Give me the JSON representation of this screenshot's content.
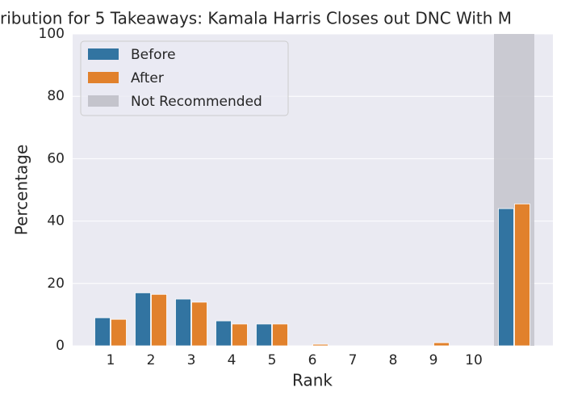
{
  "chart_data": {
    "type": "bar",
    "title": "ribution for 5 Takeaways: Kamala Harris Closes out DNC With M",
    "x_label": "Rank",
    "y_label": "Percentage",
    "categories": [
      "1",
      "2",
      "3",
      "4",
      "5",
      "6",
      "7",
      "8",
      "9",
      "10",
      null
    ],
    "series": [
      {
        "name": "Before",
        "color": "#3274a1",
        "values": [
          9,
          17,
          15,
          8,
          7,
          0,
          0,
          0,
          0,
          0,
          44
        ]
      },
      {
        "name": "After",
        "color": "#e1812c",
        "values": [
          8.5,
          16.5,
          14,
          7,
          7,
          0.5,
          0,
          0,
          1,
          0,
          45.5
        ]
      }
    ],
    "highlight": {
      "name": "Not Recommended",
      "color": "#c4c4cc",
      "category_index": 10
    },
    "ylim": [
      0,
      100
    ],
    "yticks": [
      0,
      20,
      40,
      60,
      80,
      100
    ],
    "grid": true,
    "legend": "upper left"
  }
}
